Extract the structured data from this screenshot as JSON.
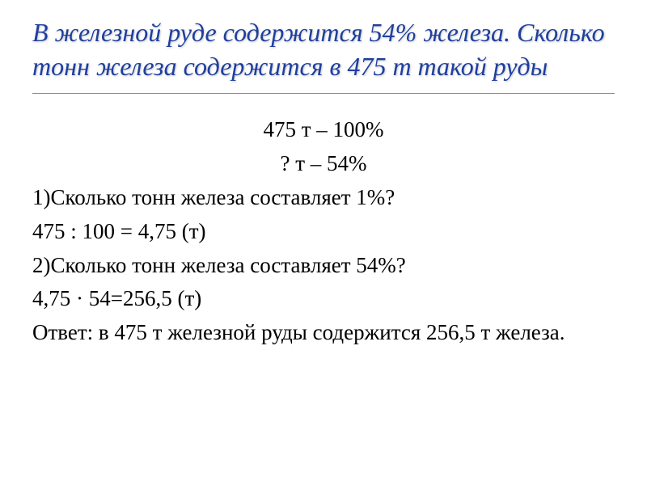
{
  "title": "В железной руде содержится 54% железа. Сколько тонн железа содержится в 475 т такой руды",
  "lines": {
    "setup1": "475 т – 100%",
    "setup2": " ? т – 54%",
    "q1": "1)Сколько тонн железа составляет 1%?",
    "calc1": "475 : 100 = 4,75 (т)",
    "q2": "2)Сколько тонн железа составляет 54%?",
    "calc2": "4,75 · 54=256,5 (т)",
    "answer": "Ответ: в 475 т железной руды содержится 256,5 т железа."
  },
  "style": {
    "title_color": "#1f3f9e",
    "title_fontsize": 32,
    "body_fontsize": 27,
    "body_color": "#000000",
    "background": "#ffffff"
  }
}
